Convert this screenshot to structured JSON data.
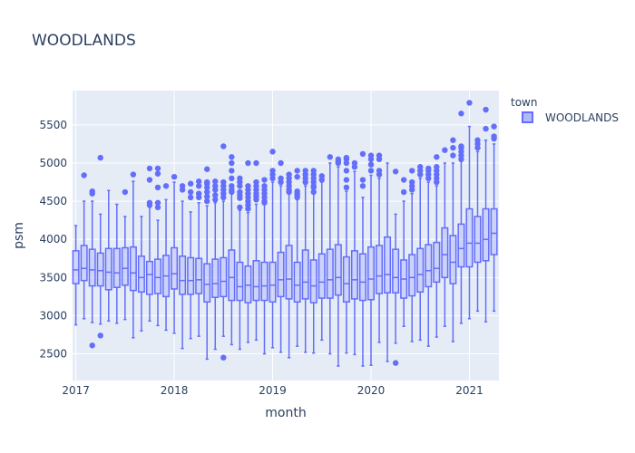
{
  "chart_data": {
    "type": "box",
    "title": "WOODLANDS",
    "xlabel": "month",
    "ylabel": "psm",
    "legend": {
      "title": "town",
      "entries": [
        "WOODLANDS"
      ],
      "placement": "top-right"
    },
    "series": [
      {
        "name": "WOODLANDS",
        "color": "#636efa",
        "fill": "#b3b8fc"
      }
    ],
    "x_ticks": [
      {
        "label": "2017",
        "month": 0
      },
      {
        "label": "2018",
        "month": 12
      },
      {
        "label": "2019",
        "month": 24
      },
      {
        "label": "2020",
        "month": 36
      },
      {
        "label": "2021",
        "month": 48
      }
    ],
    "y_ticks": [
      2500,
      3000,
      3500,
      4000,
      4500,
      5000,
      5500
    ],
    "ylim": [
      2150,
      5950
    ],
    "xlim_months": [
      -0.4,
      51.6
    ],
    "grid": true,
    "boxes": [
      {
        "month": 0,
        "low": 2880,
        "q1": 3420,
        "median": 3600,
        "q3": 3850,
        "high": 4180,
        "outliers": []
      },
      {
        "month": 1,
        "low": 2960,
        "q1": 3460,
        "median": 3620,
        "q3": 3920,
        "high": 4500,
        "outliers": [
          4840
        ]
      },
      {
        "month": 2,
        "low": 2910,
        "q1": 3390,
        "median": 3600,
        "q3": 3870,
        "high": 4500,
        "outliers": [
          4600,
          4630,
          2610
        ]
      },
      {
        "month": 3,
        "low": 2890,
        "q1": 3390,
        "median": 3590,
        "q3": 3820,
        "high": 4330,
        "outliers": [
          5070,
          2740
        ]
      },
      {
        "month": 4,
        "low": 2930,
        "q1": 3340,
        "median": 3570,
        "q3": 3880,
        "high": 4640,
        "outliers": []
      },
      {
        "month": 5,
        "low": 2900,
        "q1": 3370,
        "median": 3560,
        "q3": 3880,
        "high": 4460,
        "outliers": []
      },
      {
        "month": 6,
        "low": 2950,
        "q1": 3400,
        "median": 3620,
        "q3": 3890,
        "high": 4300,
        "outliers": [
          4620
        ]
      },
      {
        "month": 7,
        "low": 2710,
        "q1": 3330,
        "median": 3560,
        "q3": 3900,
        "high": 4760,
        "outliers": [
          4850
        ]
      },
      {
        "month": 8,
        "low": 2800,
        "q1": 3310,
        "median": 3500,
        "q3": 3780,
        "high": 4300,
        "outliers": []
      },
      {
        "month": 9,
        "low": 2930,
        "q1": 3280,
        "median": 3540,
        "q3": 3710,
        "high": 4420,
        "outliers": [
          4450,
          4480,
          4780,
          4930
        ]
      },
      {
        "month": 10,
        "low": 2870,
        "q1": 3290,
        "median": 3500,
        "q3": 3740,
        "high": 4250,
        "outliers": [
          4680,
          4860,
          4930,
          4480,
          4420
        ]
      },
      {
        "month": 11,
        "low": 2810,
        "q1": 3250,
        "median": 3520,
        "q3": 3790,
        "high": 4520,
        "outliers": [
          4700
        ]
      },
      {
        "month": 12,
        "low": 2770,
        "q1": 3350,
        "median": 3550,
        "q3": 3890,
        "high": 4750,
        "outliers": [
          4820
        ]
      },
      {
        "month": 13,
        "low": 2570,
        "q1": 3280,
        "median": 3460,
        "q3": 3780,
        "high": 4500,
        "outliers": [
          4650,
          4700
        ]
      },
      {
        "month": 14,
        "low": 2700,
        "q1": 3280,
        "median": 3460,
        "q3": 3760,
        "high": 4360,
        "outliers": [
          4550,
          4620,
          4730
        ]
      },
      {
        "month": 15,
        "low": 2730,
        "q1": 3290,
        "median": 3470,
        "q3": 3750,
        "high": 4480,
        "outliers": [
          4550,
          4600,
          4700,
          4760
        ]
      },
      {
        "month": 16,
        "low": 2430,
        "q1": 3180,
        "median": 3410,
        "q3": 3680,
        "high": 4440,
        "outliers": [
          4500,
          4560,
          4620,
          4680,
          4730,
          4750,
          4920
        ]
      },
      {
        "month": 17,
        "low": 2560,
        "q1": 3240,
        "median": 3420,
        "q3": 3740,
        "high": 4480,
        "outliers": [
          4520,
          4580,
          4650,
          4700,
          4760
        ]
      },
      {
        "month": 18,
        "low": 2730,
        "q1": 3250,
        "median": 3450,
        "q3": 3760,
        "high": 4500,
        "outliers": [
          4550,
          4600,
          4650,
          4700,
          4750,
          5220,
          2450
        ]
      },
      {
        "month": 19,
        "low": 2620,
        "q1": 3200,
        "median": 3500,
        "q3": 3860,
        "high": 4600,
        "outliers": [
          4620,
          4650,
          4700,
          4800,
          4900,
          5000,
          5080
        ]
      },
      {
        "month": 20,
        "low": 2560,
        "q1": 3200,
        "median": 3380,
        "q3": 3700,
        "high": 4380,
        "outliers": [
          4420,
          4540,
          4580,
          4620,
          4700,
          4750,
          4800
        ]
      },
      {
        "month": 21,
        "low": 2650,
        "q1": 3170,
        "median": 3400,
        "q3": 3650,
        "high": 4350,
        "outliers": [
          4400,
          4450,
          4500,
          4550,
          4600,
          4650,
          4700,
          5000
        ]
      },
      {
        "month": 22,
        "low": 2680,
        "q1": 3200,
        "median": 3380,
        "q3": 3720,
        "high": 4460,
        "outliers": [
          4520,
          4560,
          4600,
          4650,
          4700,
          4750,
          5000
        ]
      },
      {
        "month": 23,
        "low": 2500,
        "q1": 3200,
        "median": 3390,
        "q3": 3700,
        "high": 4470,
        "outliers": [
          4480,
          4500,
          4550,
          4600,
          4650,
          4700,
          4780
        ]
      },
      {
        "month": 24,
        "low": 2580,
        "q1": 3180,
        "median": 3400,
        "q3": 3700,
        "high": 4750,
        "outliers": [
          4800,
          4850,
          4900,
          5150
        ]
      },
      {
        "month": 25,
        "low": 2520,
        "q1": 3250,
        "median": 3470,
        "q3": 3830,
        "high": 4700,
        "outliers": [
          4750,
          4800,
          5000
        ]
      },
      {
        "month": 26,
        "low": 2450,
        "q1": 3220,
        "median": 3480,
        "q3": 3920,
        "high": 4600,
        "outliers": [
          4620,
          4650,
          4700,
          4750,
          4800,
          4850
        ]
      },
      {
        "month": 27,
        "low": 2600,
        "q1": 3180,
        "median": 3400,
        "q3": 3700,
        "high": 4520,
        "outliers": [
          4550,
          4580,
          4600,
          4630,
          4820,
          4900
        ]
      },
      {
        "month": 28,
        "low": 2520,
        "q1": 3220,
        "median": 3440,
        "q3": 3860,
        "high": 4700,
        "outliers": [
          4750,
          4800,
          4850,
          4900
        ]
      },
      {
        "month": 29,
        "low": 2510,
        "q1": 3170,
        "median": 3390,
        "q3": 3730,
        "high": 4600,
        "outliers": [
          4620,
          4680,
          4700,
          4750,
          4800,
          4850,
          4900
        ]
      },
      {
        "month": 30,
        "low": 2680,
        "q1": 3230,
        "median": 3440,
        "q3": 3810,
        "high": 4750,
        "outliers": [
          4780,
          4830
        ]
      },
      {
        "month": 31,
        "low": 2500,
        "q1": 3230,
        "median": 3470,
        "q3": 3870,
        "high": 5000,
        "outliers": [
          5080
        ]
      },
      {
        "month": 32,
        "low": 2340,
        "q1": 3270,
        "median": 3500,
        "q3": 3930,
        "high": 4950,
        "outliers": [
          5000,
          5020,
          5050
        ]
      },
      {
        "month": 33,
        "low": 2510,
        "q1": 3180,
        "median": 3420,
        "q3": 3770,
        "high": 4630,
        "outliers": [
          4680,
          4780,
          4900,
          5000,
          5050,
          5070
        ]
      },
      {
        "month": 34,
        "low": 2490,
        "q1": 3220,
        "median": 3470,
        "q3": 3850,
        "high": 4890,
        "outliers": [
          4950,
          5000
        ]
      },
      {
        "month": 35,
        "low": 2340,
        "q1": 3200,
        "median": 3440,
        "q3": 3810,
        "high": 4550,
        "outliers": [
          4700,
          4780,
          5120
        ]
      },
      {
        "month": 36,
        "low": 2350,
        "q1": 3210,
        "median": 3480,
        "q3": 3900,
        "high": 4840,
        "outliers": [
          4900,
          4980,
          5050,
          5100
        ]
      },
      {
        "month": 37,
        "low": 2650,
        "q1": 3290,
        "median": 3520,
        "q3": 3920,
        "high": 4800,
        "outliers": [
          4850,
          4900,
          5050,
          5100
        ]
      },
      {
        "month": 38,
        "low": 2400,
        "q1": 3300,
        "median": 3540,
        "q3": 4030,
        "high": 5000,
        "outliers": []
      },
      {
        "month": 39,
        "low": 2640,
        "q1": 3300,
        "median": 3500,
        "q3": 3870,
        "high": 4330,
        "outliers": [
          4890,
          2380
        ]
      },
      {
        "month": 40,
        "low": 2860,
        "q1": 3230,
        "median": 3480,
        "q3": 3730,
        "high": 4500,
        "outliers": [
          4620,
          4780
        ]
      },
      {
        "month": 41,
        "low": 2660,
        "q1": 3260,
        "median": 3500,
        "q3": 3800,
        "high": 4600,
        "outliers": [
          4650,
          4700,
          4750,
          4900
        ]
      },
      {
        "month": 42,
        "low": 2680,
        "q1": 3310,
        "median": 3540,
        "q3": 3880,
        "high": 4800,
        "outliers": [
          4850,
          4900,
          4950
        ]
      },
      {
        "month": 43,
        "low": 2600,
        "q1": 3380,
        "median": 3590,
        "q3": 3930,
        "high": 4750,
        "outliers": [
          4800,
          4850,
          4900,
          4930
        ]
      },
      {
        "month": 44,
        "low": 2720,
        "q1": 3440,
        "median": 3620,
        "q3": 3960,
        "high": 4700,
        "outliers": [
          4750,
          4800,
          4850,
          4900,
          4950,
          5080
        ]
      },
      {
        "month": 45,
        "low": 2860,
        "q1": 3500,
        "median": 3800,
        "q3": 4150,
        "high": 5000,
        "outliers": [
          5170
        ]
      },
      {
        "month": 46,
        "low": 2660,
        "q1": 3420,
        "median": 3700,
        "q3": 4050,
        "high": 5000,
        "outliers": [
          5100,
          5200,
          5300
        ]
      },
      {
        "month": 47,
        "low": 2900,
        "q1": 3640,
        "median": 3880,
        "q3": 4200,
        "high": 5020,
        "outliers": [
          5050,
          5100,
          5150,
          5200,
          5220,
          5650
        ]
      },
      {
        "month": 48,
        "low": 2960,
        "q1": 3640,
        "median": 3950,
        "q3": 4400,
        "high": 5480,
        "outliers": [
          5790
        ]
      },
      {
        "month": 49,
        "low": 3060,
        "q1": 3700,
        "median": 3950,
        "q3": 4300,
        "high": 5150,
        "outliers": [
          5200,
          5250,
          5300
        ]
      },
      {
        "month": 50,
        "low": 2920,
        "q1": 3720,
        "median": 4000,
        "q3": 4400,
        "high": 5300,
        "outliers": [
          5450,
          5700
        ]
      },
      {
        "month": 51,
        "low": 3060,
        "q1": 3800,
        "median": 4080,
        "q3": 4400,
        "high": 5250,
        "outliers": [
          5320,
          5350,
          5480
        ]
      }
    ]
  }
}
